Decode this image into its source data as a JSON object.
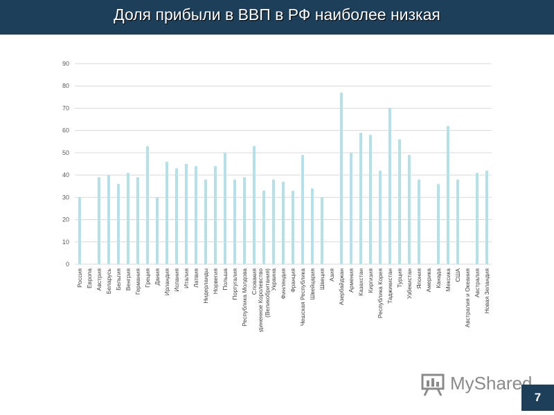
{
  "header": {
    "title": "Доля прибыли в ВВП в РФ наиболее низкая"
  },
  "logo": {
    "text": "MyShared"
  },
  "page_number": "7",
  "colors": {
    "header_bg": "#1e3f5a",
    "bar": "#b4e0e6",
    "grid": "#d9d9d9"
  },
  "chart_data": {
    "type": "bar",
    "title": "",
    "xlabel": "",
    "ylabel": "",
    "ylim": [
      0,
      90
    ],
    "yticks": [
      0,
      10,
      20,
      30,
      40,
      50,
      60,
      70,
      80,
      90
    ],
    "grid": true,
    "categories": [
      "Россия",
      "Европа",
      "Австрия",
      "Беларусь",
      "Бельгия",
      "Венгрия",
      "Германия",
      "Греция",
      "Дания",
      "Ирландия",
      "Испания",
      "Италия",
      "Латвия",
      "Нидерланды",
      "Норвегия",
      "Польша",
      "Португалия",
      "Республика Молдова",
      "Словакия",
      "Соединенное Королевство (Великобритания)",
      "Украина",
      "Финляндия",
      "Франция",
      "Чешская Республика",
      "Швейцария",
      "Швеция",
      "Азия",
      "Азербайджан",
      "Армения",
      "Казахстан",
      "Киргизия",
      "Республика Корея",
      "Таджикистан",
      "Турция",
      "Узбекистан",
      "Япония",
      "Америка",
      "Канада",
      "Мексика",
      "США",
      "Австралия и Океания",
      "Австралия",
      "Новая Зеландия"
    ],
    "values": [
      30,
      null,
      39,
      40,
      36,
      41,
      39,
      53,
      30,
      46,
      43,
      45,
      44,
      38,
      44,
      50,
      38,
      39,
      53,
      33,
      38,
      37,
      33,
      49,
      34,
      30,
      null,
      77,
      50,
      59,
      58,
      42,
      70,
      56,
      49,
      38,
      null,
      36,
      62,
      38,
      null,
      41,
      42
    ]
  }
}
